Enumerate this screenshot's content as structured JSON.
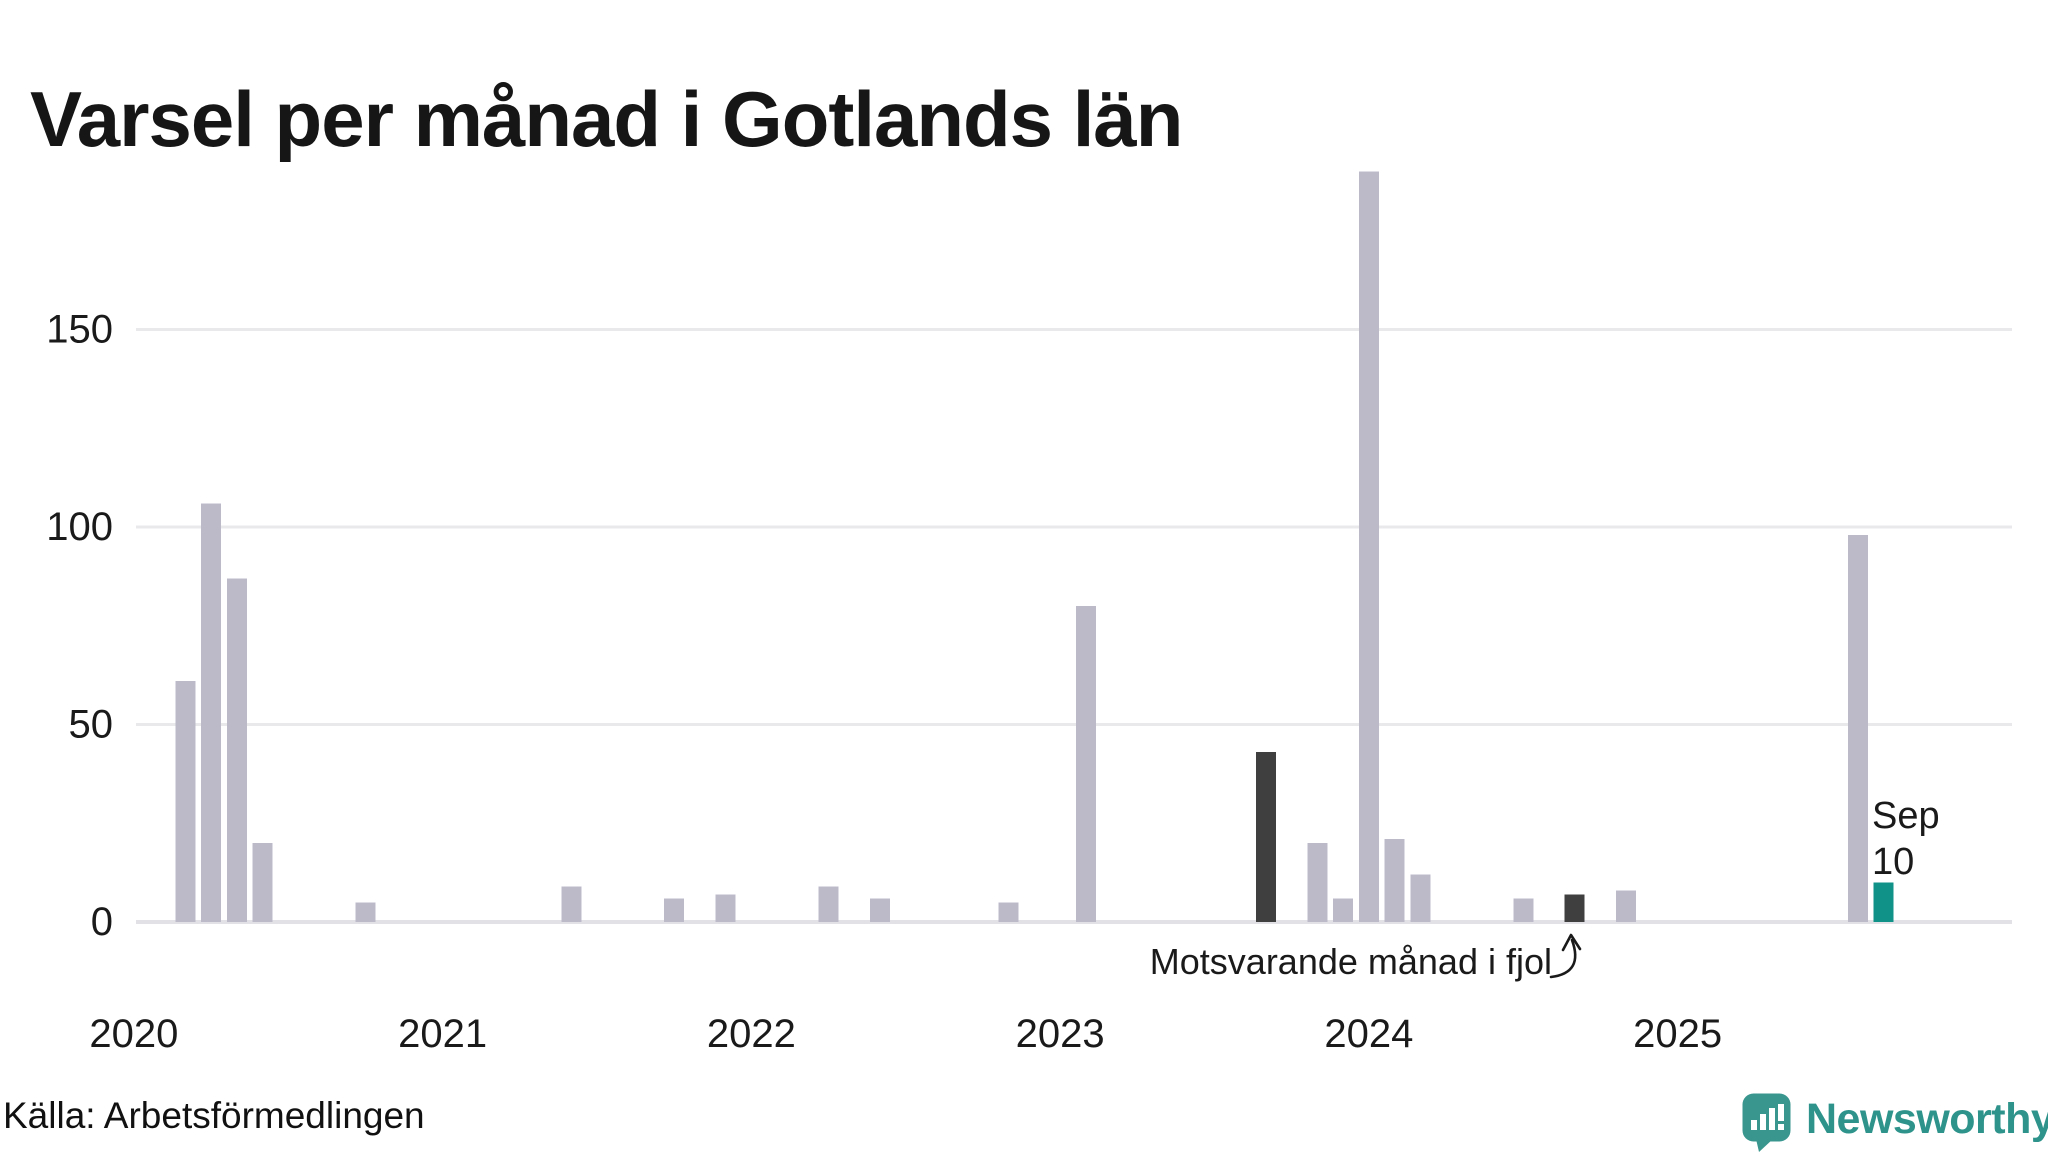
{
  "title": "Varsel per månad i Gotlands län",
  "source": "Källa: Arbetsförmedlingen",
  "annotation": {
    "text": "Motsvarande månad i fjol"
  },
  "latest_label": {
    "month": "Sep",
    "value": "10"
  },
  "logo": {
    "name": "Newsworthy"
  },
  "colors": {
    "bar_default": "#bcbac9",
    "bar_dark": "#3f3f3f",
    "bar_accent": "#119288",
    "gridline": "#e9e9ec",
    "axis_line": "#e1e1e6",
    "text": "#1a1a1a",
    "logo_teal": "#2d938b",
    "logo_icon": "#39968e"
  },
  "chart_data": {
    "type": "bar",
    "title": "Varsel per månad i Gotlands län",
    "x_unit": "month",
    "x_range": [
      "2020-01",
      "2025-09"
    ],
    "xticks": [
      "2020",
      "2021",
      "2022",
      "2023",
      "2024",
      "2025"
    ],
    "yticks": [
      0,
      50,
      100,
      150
    ],
    "ylim": [
      0,
      200
    ],
    "grid": "horizontal",
    "legend": "none",
    "values_by_year": {
      "2020": [
        0,
        0,
        61,
        106,
        87,
        20,
        0,
        0,
        0,
        5,
        0,
        0
      ],
      "2021": [
        0,
        0,
        0,
        0,
        0,
        9,
        0,
        0,
        0,
        6,
        0,
        7
      ],
      "2022": [
        0,
        0,
        0,
        9,
        0,
        6,
        0,
        0,
        0,
        0,
        5,
        0
      ],
      "2023": [
        0,
        80,
        0,
        0,
        0,
        0,
        0,
        0,
        43,
        0,
        20,
        6
      ],
      "2024": [
        190,
        21,
        12,
        0,
        0,
        0,
        6,
        0,
        7,
        0,
        8,
        0
      ],
      "2025": [
        0,
        0,
        0,
        0,
        0,
        0,
        0,
        98,
        10
      ]
    },
    "highlight_dark_months": [
      "2023-09",
      "2024-09"
    ],
    "highlight_dark_meaning": "Motsvarande månad i fjol",
    "highlight_accent_month": "2025-09",
    "accent_value_label": "Sep 10"
  }
}
